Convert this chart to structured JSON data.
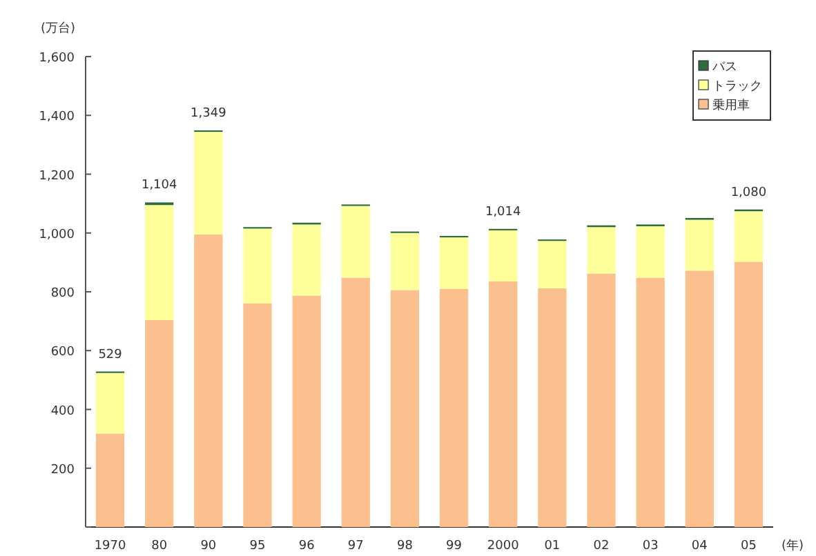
{
  "chart_data": {
    "type": "bar",
    "stacked": true,
    "ylabel": "(万台)",
    "xlabel": "(年)",
    "categories": [
      "1970",
      "80",
      "90",
      "95",
      "96",
      "97",
      "98",
      "99",
      "2000",
      "01",
      "02",
      "03",
      "04",
      "05"
    ],
    "series": [
      {
        "name": "乗用車",
        "color": "#fbc08e",
        "values": [
          318,
          704,
          995,
          761,
          787,
          848,
          806,
          810,
          836,
          812,
          862,
          848,
          872,
          902
        ]
      },
      {
        "name": "トラック",
        "color": "#ffff99",
        "values": [
          206,
          391,
          349,
          254,
          242,
          244,
          194,
          175,
          173,
          161,
          158,
          175,
          173,
          172
        ]
      },
      {
        "name": "バス",
        "color": "#2e6b3f",
        "values": [
          5,
          9,
          5,
          5,
          6,
          5,
          5,
          5,
          5,
          5,
          6,
          6,
          6,
          6
        ]
      }
    ],
    "totals": [
      "529",
      "1,104",
      "1,349",
      null,
      null,
      null,
      null,
      null,
      "1,014",
      null,
      null,
      null,
      null,
      "1,080"
    ],
    "ylim": [
      0,
      1600
    ],
    "yticks": [
      {
        "value": 0,
        "label": null
      },
      {
        "value": 200,
        "label": "200"
      },
      {
        "value": 400,
        "label": "400"
      },
      {
        "value": 600,
        "label": "600"
      },
      {
        "value": 800,
        "label": "800"
      },
      {
        "value": 1000,
        "label": "1,000"
      },
      {
        "value": 1200,
        "label": "1,200"
      },
      {
        "value": 1400,
        "label": "1,400"
      },
      {
        "value": 1600,
        "label": "1,600"
      }
    ],
    "legend": "top right",
    "grid": false
  }
}
